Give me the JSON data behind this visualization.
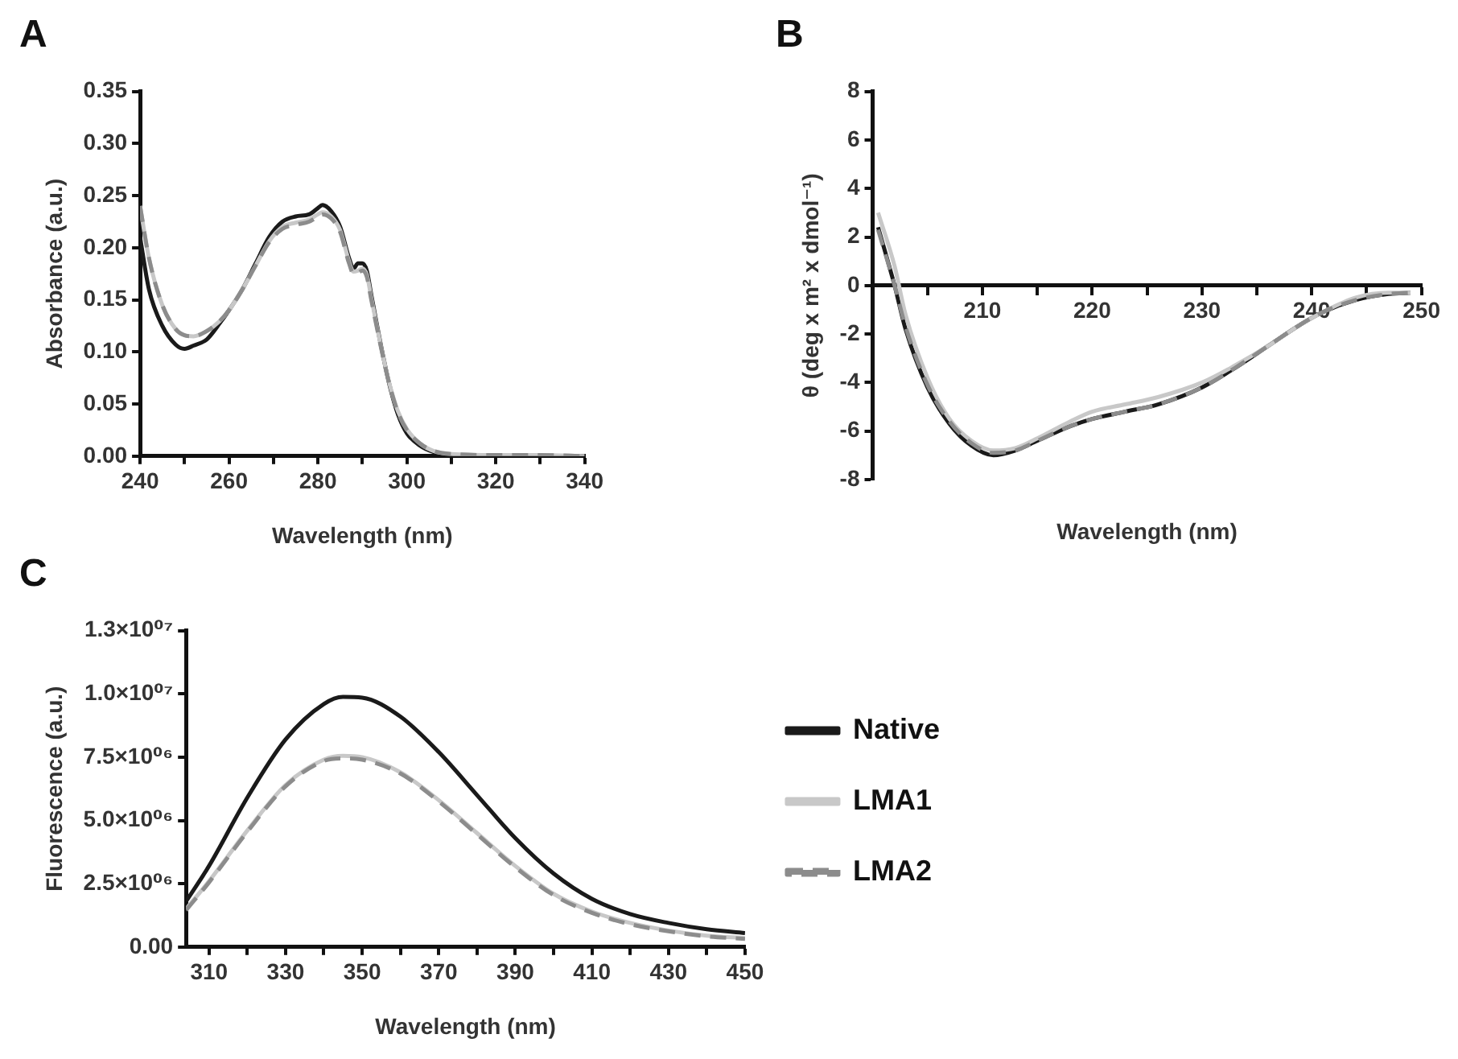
{
  "chart_data": [
    {
      "type": "line",
      "title": "A",
      "xlabel": "Wavelength (nm)",
      "ylabel": "Absorbance (a.u.)",
      "xlim": [
        240,
        340
      ],
      "xticks": [
        240,
        {
          "value": 250,
          "label": null
        },
        260,
        {
          "value": 270,
          "label": null
        },
        280,
        {
          "value": 290,
          "label": null
        },
        300,
        {
          "value": 310,
          "label": null
        },
        320,
        {
          "value": 330,
          "label": null
        },
        340
      ],
      "ylim": [
        0,
        0.35
      ],
      "yticks": [
        {
          "value": 0,
          "label": "0.00"
        },
        {
          "value": 0.05,
          "label": "0.05"
        },
        {
          "value": 0.1,
          "label": "0.10"
        },
        {
          "value": 0.15,
          "label": "0.15"
        },
        {
          "value": 0.2,
          "label": "0.20"
        },
        {
          "value": 0.25,
          "label": "0.25"
        },
        {
          "value": 0.3,
          "label": "0.30"
        },
        {
          "value": 0.35,
          "label": "0.35"
        }
      ],
      "legend": false,
      "x": [
        240,
        242,
        245,
        248,
        250,
        252,
        255,
        258,
        260,
        263,
        266,
        269,
        272,
        275,
        278,
        280,
        281,
        283,
        285,
        287,
        288,
        289,
        290,
        291,
        292,
        294,
        296,
        298,
        300,
        303,
        306,
        310,
        320,
        330,
        340
      ],
      "series": [
        {
          "color": "#1a1a1a",
          "line_style": "solid",
          "values": [
            0.21,
            0.16,
            0.125,
            0.107,
            0.103,
            0.106,
            0.112,
            0.128,
            0.14,
            0.16,
            0.185,
            0.21,
            0.225,
            0.23,
            0.232,
            0.238,
            0.241,
            0.235,
            0.22,
            0.19,
            0.18,
            0.185,
            0.185,
            0.178,
            0.155,
            0.11,
            0.07,
            0.04,
            0.022,
            0.01,
            0.004,
            0.001,
            0,
            0,
            0
          ]
        },
        {
          "color": "#c8c8c8",
          "line_style": "solid",
          "values": [
            0.24,
            0.19,
            0.145,
            0.122,
            0.116,
            0.115,
            0.12,
            0.13,
            0.14,
            0.16,
            0.183,
            0.206,
            0.22,
            0.224,
            0.227,
            0.232,
            0.234,
            0.23,
            0.217,
            0.187,
            0.177,
            0.178,
            0.18,
            0.174,
            0.152,
            0.109,
            0.071,
            0.043,
            0.026,
            0.012,
            0.005,
            0.002,
            0.001,
            0.001,
            0
          ]
        },
        {
          "color": "#8c8c8c",
          "line_style": "dashed",
          "values": [
            0.24,
            0.19,
            0.145,
            0.122,
            0.116,
            0.115,
            0.12,
            0.13,
            0.14,
            0.16,
            0.183,
            0.205,
            0.218,
            0.222,
            0.225,
            0.23,
            0.232,
            0.228,
            0.215,
            0.185,
            0.175,
            0.176,
            0.178,
            0.172,
            0.15,
            0.108,
            0.07,
            0.042,
            0.025,
            0.012,
            0.005,
            0.002,
            0.001,
            0.001,
            0
          ]
        }
      ]
    },
    {
      "type": "line",
      "title": "B",
      "xlabel": "Wavelength (nm)",
      "ylabel": "θ (deg x m² x dmol⁻¹)",
      "xlim": [
        200,
        250
      ],
      "xticks": [
        {
          "value": 205,
          "label": null
        },
        210,
        {
          "value": 215,
          "label": null
        },
        220,
        {
          "value": 225,
          "label": null
        },
        230,
        {
          "value": 235,
          "label": null
        },
        240,
        {
          "value": 245,
          "label": null
        },
        250
      ],
      "ylim": [
        -8,
        8
      ],
      "yticks": [
        -8,
        -6,
        -4,
        -2,
        0,
        2,
        4,
        6,
        8
      ],
      "legend": false,
      "x": [
        200.5,
        202,
        203,
        205,
        207,
        209,
        211,
        213,
        215,
        218,
        220,
        223,
        226,
        230,
        233,
        236,
        239,
        241,
        244,
        247,
        249
      ],
      "series": [
        {
          "color": "#1a1a1a",
          "line_style": "solid",
          "values": [
            2.4,
            0,
            -1.8,
            -4.2,
            -5.7,
            -6.6,
            -7.0,
            -6.8,
            -6.4,
            -5.8,
            -5.5,
            -5.2,
            -4.9,
            -4.2,
            -3.4,
            -2.5,
            -1.6,
            -1.1,
            -0.6,
            -0.35,
            -0.3
          ]
        },
        {
          "color": "#c8c8c8",
          "line_style": "solid",
          "values": [
            3.0,
            0.8,
            -1.2,
            -3.8,
            -5.5,
            -6.4,
            -6.8,
            -6.7,
            -6.3,
            -5.6,
            -5.2,
            -4.9,
            -4.6,
            -4.0,
            -3.3,
            -2.5,
            -1.6,
            -1.1,
            -0.5,
            -0.3,
            -0.3
          ]
        },
        {
          "color": "#8c8c8c",
          "line_style": "dashed",
          "values": [
            2.3,
            0,
            -1.7,
            -4.1,
            -5.6,
            -6.5,
            -6.9,
            -6.8,
            -6.4,
            -5.8,
            -5.5,
            -5.2,
            -4.9,
            -4.2,
            -3.4,
            -2.5,
            -1.6,
            -1.1,
            -0.6,
            -0.35,
            -0.3
          ]
        }
      ]
    },
    {
      "type": "line",
      "title": "C",
      "xlabel": "Wavelength (nm)",
      "ylabel": "Fluorescence (a.u.)",
      "xlim": [
        304,
        450
      ],
      "xticks": [
        310,
        {
          "value": 320,
          "label": null
        },
        330,
        {
          "value": 340,
          "label": null
        },
        350,
        {
          "value": 360,
          "label": null
        },
        370,
        {
          "value": 380,
          "label": null
        },
        390,
        {
          "value": 400,
          "label": null
        },
        410,
        {
          "value": 420,
          "label": null
        },
        430,
        {
          "value": 440,
          "label": null
        },
        450
      ],
      "ylim": [
        0,
        12500000
      ],
      "yticks": [
        {
          "value": 0,
          "label": "0.00"
        },
        {
          "value": 2500000,
          "label": "2.5×10⁰⁶"
        },
        {
          "value": 5000000,
          "label": "5.0×10⁰⁶"
        },
        {
          "value": 7500000,
          "label": "7.5×10⁰⁶"
        },
        {
          "value": 10000000,
          "label": "1.0×10⁰⁷"
        },
        {
          "value": 12500000,
          "label": "1.3×10⁰⁷"
        }
      ],
      "legend": "right",
      "x": [
        304,
        310,
        320,
        330,
        340,
        345,
        350,
        360,
        370,
        380,
        390,
        400,
        410,
        420,
        430,
        440,
        450
      ],
      "series": [
        {
          "name": "Native",
          "color": "#1a1a1a",
          "line_style": "solid",
          "values": [
            1800000,
            3200000,
            5900000,
            8200000,
            9600000,
            9880000,
            9850000,
            9100000,
            7700000,
            6000000,
            4300000,
            2900000,
            1900000,
            1300000,
            950000,
            700000,
            550000
          ]
        },
        {
          "name": "LMA1",
          "color": "#c8c8c8",
          "line_style": "solid",
          "values": [
            1500000,
            2600000,
            4600000,
            6400000,
            7400000,
            7550000,
            7500000,
            6900000,
            5800000,
            4500000,
            3200000,
            2100000,
            1400000,
            950000,
            650000,
            450000,
            350000
          ]
        },
        {
          "name": "LMA2",
          "color": "#8c8c8c",
          "line_style": "dashed",
          "values": [
            1450000,
            2550000,
            4550000,
            6350000,
            7350000,
            7450000,
            7400000,
            6850000,
            5750000,
            4450000,
            3150000,
            2050000,
            1350000,
            900000,
            620000,
            420000,
            320000
          ]
        }
      ]
    }
  ]
}
